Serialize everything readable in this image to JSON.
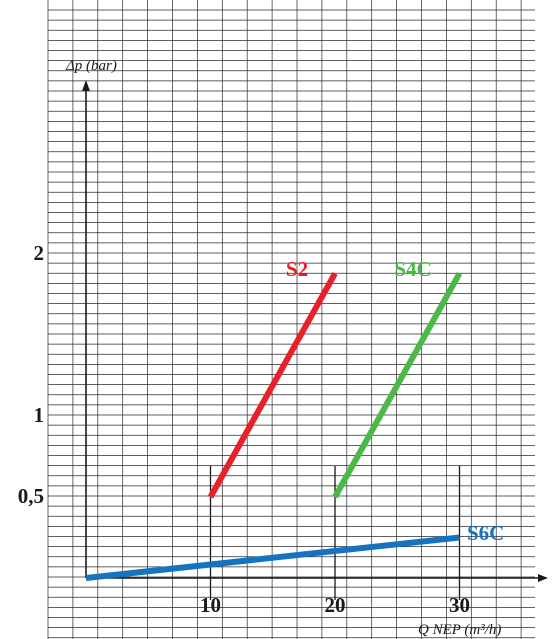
{
  "chart_data": {
    "type": "line",
    "ylabel": "Δp (bar)",
    "xlabel": "Q NEP (m³/h)",
    "xlim": [
      0,
      36
    ],
    "ylim": [
      0,
      2.8
    ],
    "x_ticks": [
      {
        "value": 10,
        "label": "10"
      },
      {
        "value": 20,
        "label": "20"
      },
      {
        "value": 30,
        "label": "30"
      }
    ],
    "y_ticks": [
      {
        "value": 0.5,
        "label": "0,5"
      },
      {
        "value": 1,
        "label": "1"
      },
      {
        "value": 2,
        "label": "2"
      }
    ],
    "grid": true,
    "series": [
      {
        "name": "S2",
        "color": "#e8202a",
        "points": [
          [
            10,
            0.5
          ],
          [
            20,
            1.88
          ]
        ]
      },
      {
        "name": "S4C",
        "color": "#4cb848",
        "points": [
          [
            20,
            0.5
          ],
          [
            30,
            1.88
          ]
        ]
      },
      {
        "name": "S6C",
        "color": "#1673c0",
        "points": [
          [
            0,
            0
          ],
          [
            30,
            0.25
          ]
        ]
      }
    ]
  }
}
